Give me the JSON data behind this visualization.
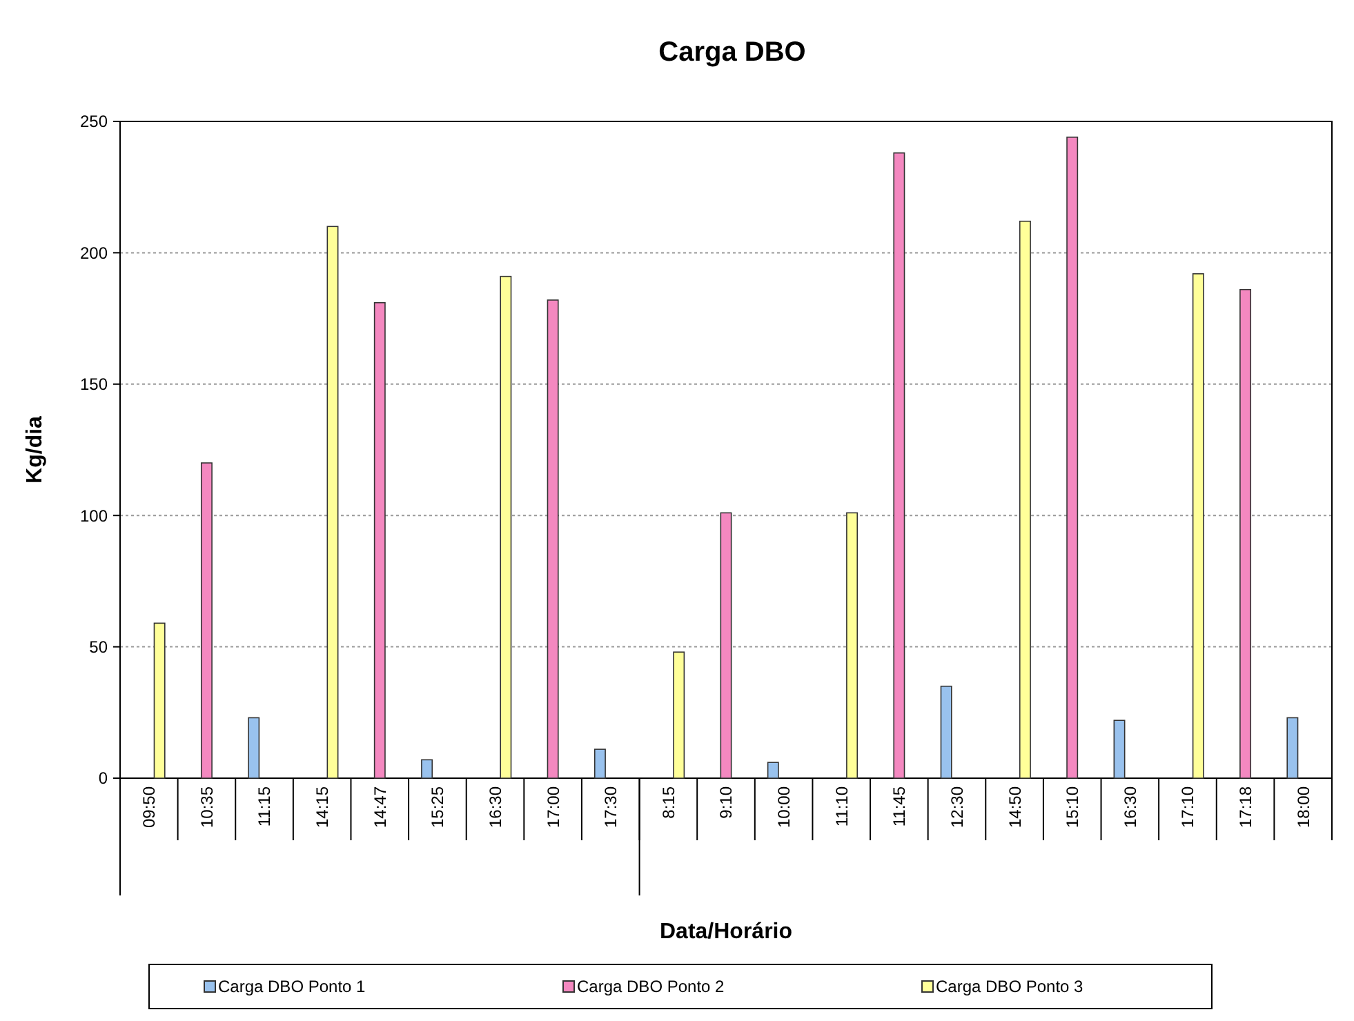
{
  "chart_data": {
    "type": "bar",
    "title": "Carga DBO",
    "xlabel": "Data/Horário",
    "ylabel": "Kg/dia",
    "categories": [
      "09:50",
      "10:35",
      "11:15",
      "14:15",
      "14:47",
      "15:25",
      "16:30",
      "17:00",
      "17:30",
      "8:15",
      "9:10",
      "10:00",
      "11:10",
      "11:45",
      "12:30",
      "14:50",
      "15:10",
      "16:30",
      "17:10",
      "17:18",
      "18:00"
    ],
    "series": [
      {
        "name": "Carga DBO Ponto 1",
        "color": "#99c2ee",
        "values": [
          null,
          null,
          23,
          null,
          null,
          7,
          null,
          null,
          11,
          null,
          null,
          6,
          null,
          null,
          35,
          null,
          null,
          22,
          null,
          null,
          23
        ]
      },
      {
        "name": "Carga DBO Ponto 2",
        "color": "#f488c0",
        "values": [
          null,
          120,
          null,
          null,
          181,
          null,
          null,
          182,
          null,
          null,
          101,
          null,
          null,
          238,
          null,
          null,
          244,
          null,
          null,
          186,
          null
        ]
      },
      {
        "name": "Carga DBO Ponto 3",
        "color": "#ffff99",
        "values": [
          59,
          null,
          null,
          210,
          null,
          null,
          191,
          null,
          null,
          48,
          null,
          null,
          101,
          null,
          null,
          212,
          null,
          null,
          192,
          null,
          null
        ]
      }
    ],
    "ylim": [
      0,
      250
    ],
    "yticks": [
      0,
      50,
      100,
      150,
      200,
      250
    ],
    "grid": "y",
    "legend": "bottom"
  }
}
